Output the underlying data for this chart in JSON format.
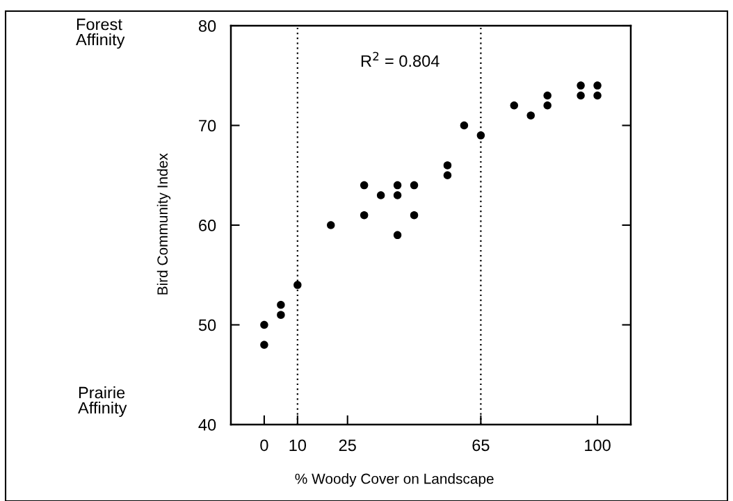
{
  "chart_data": {
    "type": "scatter",
    "xlabel": "% Woody Cover on Landscape",
    "ylabel": "Bird Community Index",
    "annotations": [
      "R$^{2}$ = 0.804",
      "Forest\nAffinity",
      "Prairie\nAffinity"
    ],
    "x": [
      0,
      0,
      5,
      5,
      10,
      20,
      30,
      30,
      35,
      40,
      40,
      40,
      45,
      45,
      55,
      55,
      60,
      65,
      75,
      80,
      85,
      85,
      95,
      95,
      100,
      100
    ],
    "series": [
      {
        "color": "#000000",
        "values": [
          50,
          48,
          52,
          51,
          54,
          60,
          64,
          61,
          63,
          64,
          63,
          59,
          64,
          61,
          66,
          65,
          70,
          69,
          72,
          71,
          73,
          72,
          74,
          73,
          74,
          73
        ]
      }
    ],
    "marker": "circle",
    "xlim": [
      -10,
      110
    ],
    "ylim": [
      40,
      80
    ],
    "xticks": [
      0,
      10,
      25,
      65,
      100
    ],
    "yticks": [
      40,
      50,
      60,
      70,
      80
    ],
    "ref_lines": [
      {
        "axis": "x",
        "value": 10,
        "color": "#000000",
        "line_style": "dotted"
      },
      {
        "axis": "x",
        "value": 65,
        "color": "#000000",
        "line_style": "dotted"
      }
    ]
  }
}
